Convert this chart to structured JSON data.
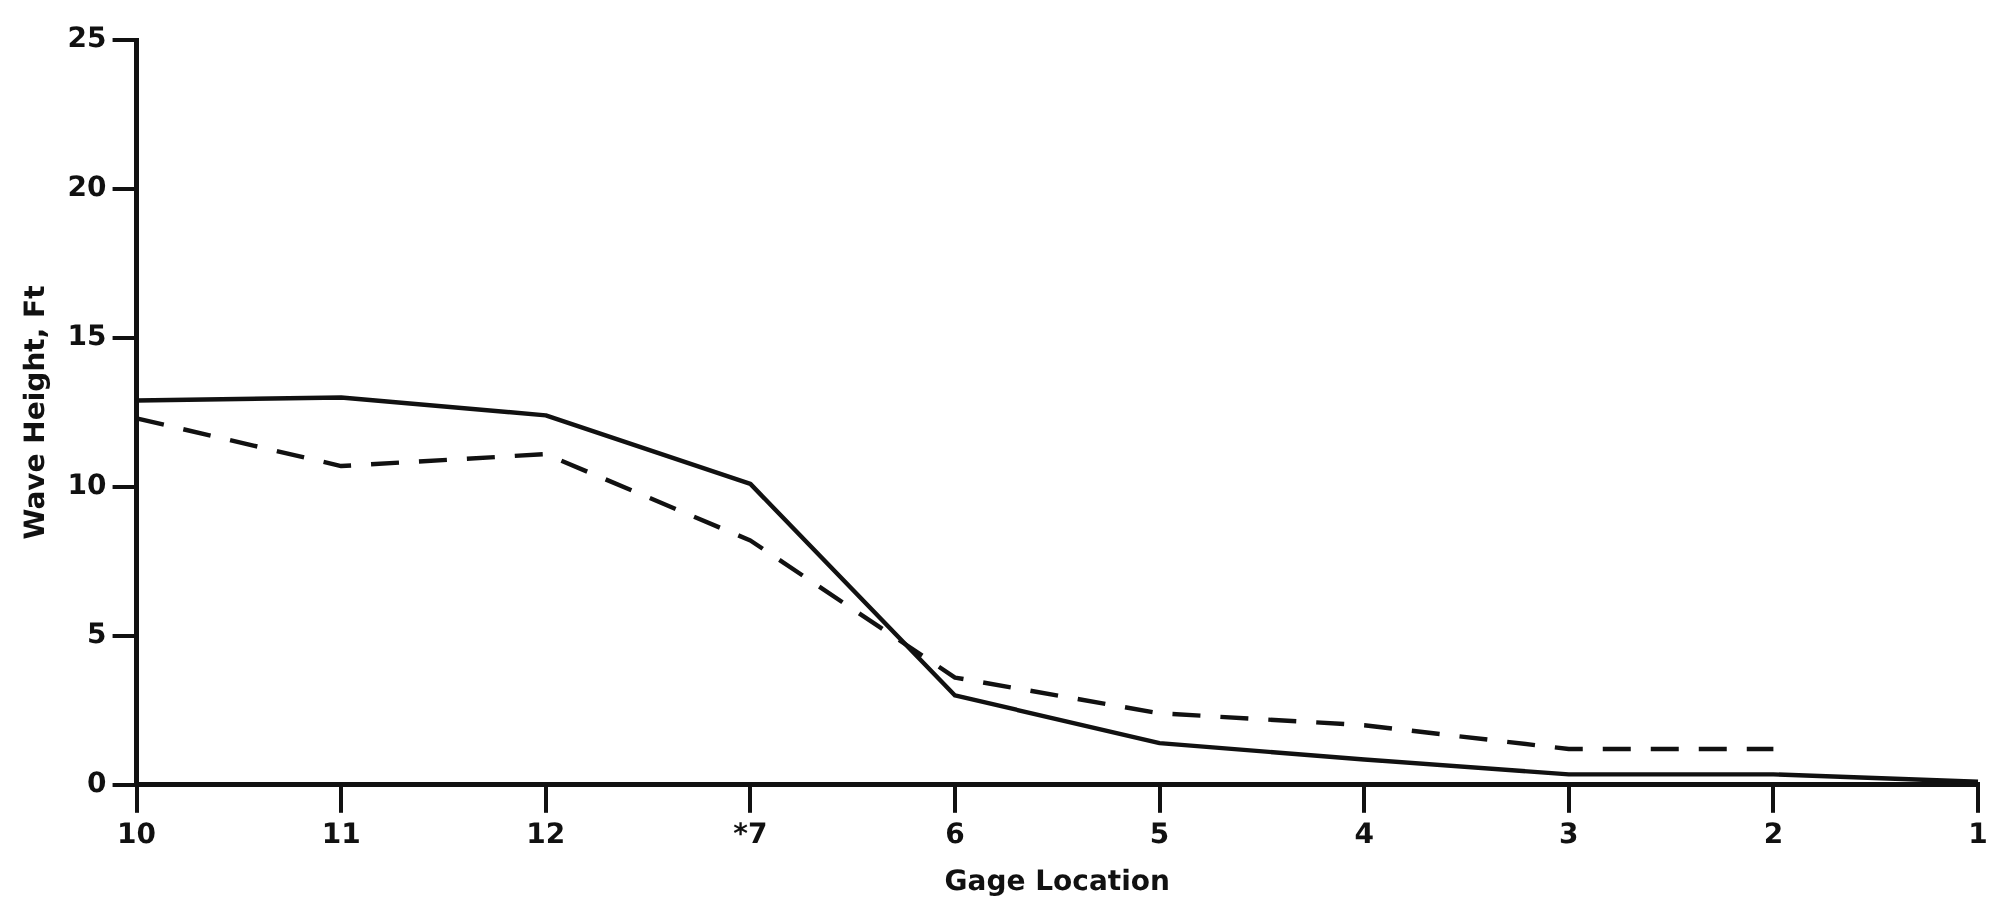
{
  "chart_data": {
    "type": "line",
    "xlabel": "Gage Location",
    "ylabel": "Wave Height, Ft",
    "categories": [
      "10",
      "11",
      "12",
      "*7",
      "6",
      "5",
      "4",
      "3",
      "2",
      "1"
    ],
    "series": [
      {
        "color": "#111111",
        "line_style": "solid",
        "values": [
          12.9,
          13.0,
          12.4,
          10.1,
          3.0,
          1.4,
          0.85,
          0.35,
          0.35,
          0.1
        ]
      },
      {
        "color": "#111111",
        "line_style": "dashed",
        "values": [
          12.3,
          10.7,
          11.1,
          8.2,
          3.6,
          2.4,
          2.0,
          1.2,
          1.2,
          null
        ]
      }
    ],
    "ylim": [
      0,
      25
    ],
    "yticks": [
      0,
      5,
      10,
      15,
      20,
      25
    ],
    "grid": false,
    "legend": false,
    "marker": "none"
  }
}
